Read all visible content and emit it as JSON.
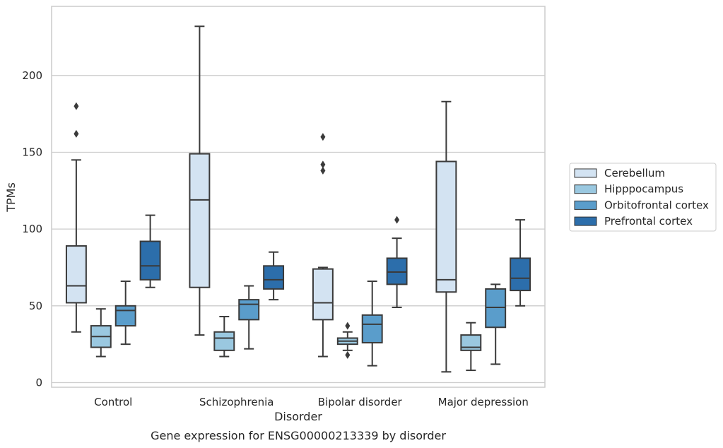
{
  "chart_data": {
    "type": "boxplot",
    "title": "",
    "caption": "Gene expression for ENSG00000213339 by disorder",
    "xlabel": "Disorder",
    "ylabel": "TPMs",
    "ylim": [
      -3,
      245
    ],
    "yticks": [
      0,
      50,
      100,
      150,
      200
    ],
    "grid": true,
    "legend_placement": "right",
    "categories": [
      "Control",
      "Schizophrenia",
      "Bipolar disorder",
      "Major depression"
    ],
    "series": [
      {
        "name": "Cerebellum",
        "color": "#d3e3f2",
        "boxes": [
          {
            "whisker_low": 33,
            "q1": 52,
            "median": 63,
            "q3": 89,
            "whisker_high": 145,
            "outliers": [
              162,
              180
            ]
          },
          {
            "whisker_low": 31,
            "q1": 62,
            "median": 119,
            "q3": 149,
            "whisker_high": 232,
            "outliers": []
          },
          {
            "whisker_low": 17,
            "q1": 41,
            "median": 52,
            "q3": 74,
            "whisker_high": 75,
            "outliers": [
              138,
              142,
              160
            ]
          },
          {
            "whisker_low": 7,
            "q1": 59,
            "median": 67,
            "q3": 144,
            "whisker_high": 183,
            "outliers": []
          }
        ]
      },
      {
        "name": "Hipppocampus",
        "color": "#9ac8e0",
        "boxes": [
          {
            "whisker_low": 17,
            "q1": 23,
            "median": 30,
            "q3": 37,
            "whisker_high": 48,
            "outliers": []
          },
          {
            "whisker_low": 17,
            "q1": 21,
            "median": 29,
            "q3": 33,
            "whisker_high": 43,
            "outliers": []
          },
          {
            "whisker_low": 21,
            "q1": 25,
            "median": 27,
            "q3": 29,
            "whisker_high": 33,
            "outliers": [
              18,
              37
            ]
          },
          {
            "whisker_low": 8,
            "q1": 21,
            "median": 23,
            "q3": 31,
            "whisker_high": 39,
            "outliers": []
          }
        ]
      },
      {
        "name": "Orbitofrontal cortex",
        "color": "#5a9dcb",
        "boxes": [
          {
            "whisker_low": 25,
            "q1": 37,
            "median": 47,
            "q3": 50,
            "whisker_high": 66,
            "outliers": []
          },
          {
            "whisker_low": 22,
            "q1": 41,
            "median": 51,
            "q3": 54,
            "whisker_high": 63,
            "outliers": []
          },
          {
            "whisker_low": 11,
            "q1": 26,
            "median": 38,
            "q3": 44,
            "whisker_high": 66,
            "outliers": []
          },
          {
            "whisker_low": 12,
            "q1": 36,
            "median": 49,
            "q3": 61,
            "whisker_high": 64,
            "outliers": []
          }
        ]
      },
      {
        "name": "Prefrontal cortex",
        "color": "#2c6eab",
        "boxes": [
          {
            "whisker_low": 62,
            "q1": 67,
            "median": 76,
            "q3": 92,
            "whisker_high": 109,
            "outliers": []
          },
          {
            "whisker_low": 54,
            "q1": 61,
            "median": 67,
            "q3": 76,
            "whisker_high": 85,
            "outliers": []
          },
          {
            "whisker_low": 49,
            "q1": 64,
            "median": 72,
            "q3": 81,
            "whisker_high": 94,
            "outliers": [
              106
            ]
          },
          {
            "whisker_low": 50,
            "q1": 60,
            "median": 68,
            "q3": 81,
            "whisker_high": 106,
            "outliers": []
          }
        ]
      }
    ]
  }
}
